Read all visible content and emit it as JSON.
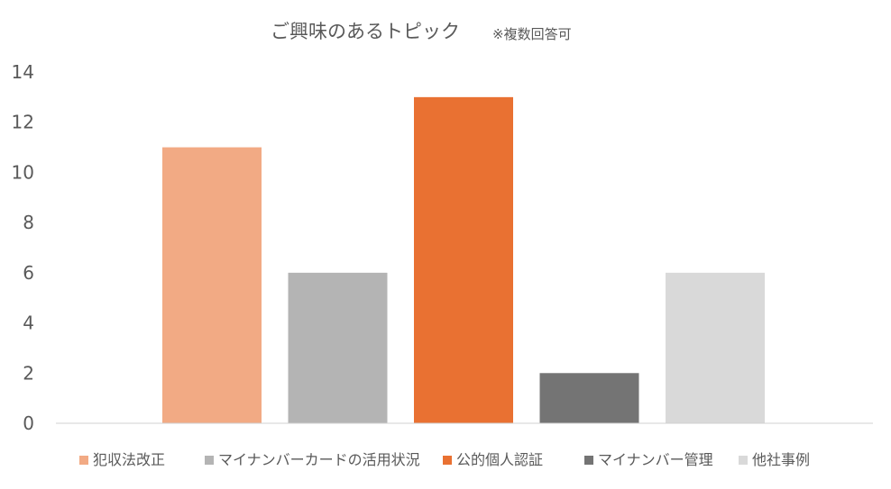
{
  "chart_data": {
    "type": "bar",
    "title": "ご興味のあるトピック",
    "subtitle": "※複数回答可",
    "categories": [
      "犯収法改正",
      "マイナンバーカードの活用状況",
      "公的個人認証",
      "マイナンバー管理",
      "他社事例"
    ],
    "values": [
      11,
      6,
      13,
      2,
      6
    ],
    "colors": [
      "#F2AA84",
      "#B4B4B4",
      "#E97132",
      "#747474",
      "#D9D9D9"
    ],
    "ylim": [
      0,
      14
    ],
    "yticks": [
      0,
      2,
      4,
      6,
      8,
      10,
      12,
      14
    ],
    "grid": false,
    "legend_position": "bottom"
  }
}
